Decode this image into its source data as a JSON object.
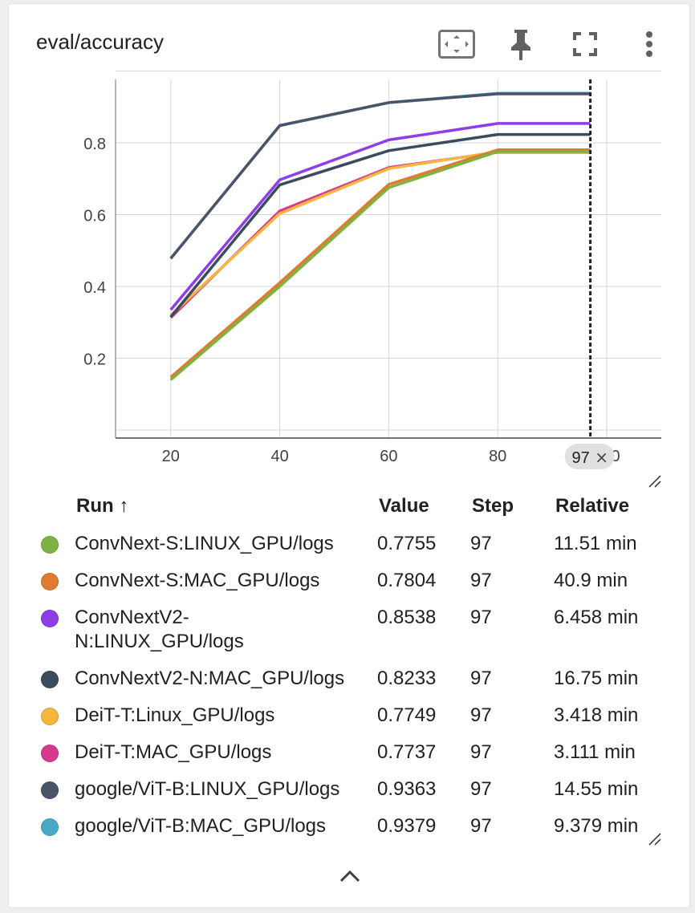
{
  "card": {
    "title": "eval/accuracy",
    "toolbar": {
      "fit_icon": "fit-to-domain-icon",
      "pin_icon": "pin-icon",
      "fullscreen_icon": "fullscreen-icon",
      "more_icon": "more-vert-icon"
    }
  },
  "chart_data": {
    "type": "line",
    "title": "eval/accuracy",
    "xlabel": "",
    "ylabel": "",
    "x_ticks": [
      "20",
      "40",
      "60",
      "80",
      "100"
    ],
    "y_ticks": [
      "0.2",
      "0.4",
      "0.6",
      "0.8"
    ],
    "xlim": [
      0,
      103
    ],
    "ylim": [
      0,
      1.0
    ],
    "grid": true,
    "hover_step": 97,
    "hover_label": "97",
    "series": [
      {
        "name": "ConvNext-S:LINUX_GPU/logs",
        "color": "#7cb342",
        "x": [
          20,
          40,
          60,
          80,
          97
        ],
        "y": [
          0.14,
          0.4,
          0.675,
          0.7755,
          0.7755
        ]
      },
      {
        "name": "ConvNext-S:MAC_GPU/logs",
        "color": "#e07a30",
        "x": [
          20,
          40,
          60,
          80,
          97
        ],
        "y": [
          0.147,
          0.41,
          0.684,
          0.7804,
          0.7804
        ]
      },
      {
        "name": "ConvNextV2-N:LINUX_GPU/logs",
        "color": "#8e3ee8",
        "x": [
          20,
          40,
          60,
          80,
          97
        ],
        "y": [
          0.335,
          0.697,
          0.808,
          0.8538,
          0.8538
        ]
      },
      {
        "name": "ConvNextV2-N:MAC_GPU/logs",
        "color": "#3c4a5e",
        "x": [
          20,
          40,
          60,
          80,
          97
        ],
        "y": [
          0.315,
          0.683,
          0.778,
          0.8233,
          0.8233
        ]
      },
      {
        "name": "DeiT-T:Linux_GPU/logs",
        "color": "#f4b63f",
        "x": [
          20,
          40,
          60,
          80,
          97
        ],
        "y": [
          0.32,
          0.603,
          0.728,
          0.7749,
          0.7749
        ]
      },
      {
        "name": "DeiT-T:MAC_GPU/logs",
        "color": "#d63a8e",
        "x": [
          20,
          40,
          60,
          80,
          97
        ],
        "y": [
          0.313,
          0.61,
          0.731,
          0.7737,
          0.7737
        ]
      },
      {
        "name": "google/ViT-B:LINUX_GPU/logs",
        "color": "#4b5368",
        "x": [
          20,
          40,
          60,
          80,
          97
        ],
        "y": [
          0.478,
          0.848,
          0.912,
          0.9363,
          0.9363
        ]
      },
      {
        "name": "google/ViT-B:MAC_GPU/logs",
        "color": "#48a9c5",
        "x": [
          20,
          40,
          60,
          80,
          97
        ],
        "y": [
          0.478,
          0.848,
          0.912,
          0.9379,
          0.9379
        ]
      }
    ]
  },
  "legend": {
    "header": {
      "run": "Run ↑",
      "value": "Value",
      "step": "Step",
      "relative": "Relative"
    },
    "rows": [
      {
        "run": "ConvNext-S:LINUX_GPU/logs",
        "value": "0.7755",
        "step": "97",
        "relative": "11.51 min",
        "color": "#7cb342"
      },
      {
        "run": "ConvNext-S:MAC_GPU/logs",
        "value": "0.7804",
        "step": "97",
        "relative": "40.9 min",
        "color": "#e07a30"
      },
      {
        "run": "ConvNextV2-N:LINUX_GPU/logs",
        "value": "0.8538",
        "step": "97",
        "relative": "6.458 min",
        "color": "#8e3ee8"
      },
      {
        "run": "ConvNextV2-N:MAC_GPU/logs",
        "value": "0.8233",
        "step": "97",
        "relative": "16.75 min",
        "color": "#3c4a5e"
      },
      {
        "run": "DeiT-T:Linux_GPU/logs",
        "value": "0.7749",
        "step": "97",
        "relative": "3.418 min",
        "color": "#f4b63f"
      },
      {
        "run": "DeiT-T:MAC_GPU/logs",
        "value": "0.7737",
        "step": "97",
        "relative": "3.111 min",
        "color": "#d63a8e"
      },
      {
        "run": "google/ViT-B:LINUX_GPU/logs",
        "value": "0.9363",
        "step": "97",
        "relative": "14.55 min",
        "color": "#4b5368"
      },
      {
        "run": "google/ViT-B:MAC_GPU/logs",
        "value": "0.9379",
        "step": "97",
        "relative": "9.379 min",
        "color": "#48a9c5"
      }
    ],
    "collapse_icon": "chevron-up-icon"
  }
}
